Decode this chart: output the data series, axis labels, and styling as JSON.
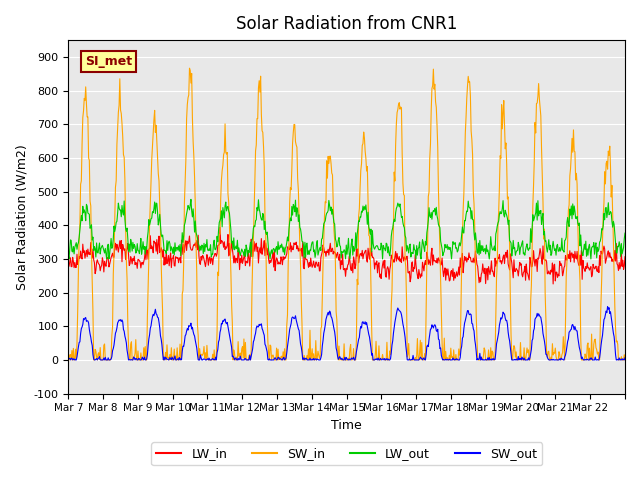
{
  "title": "Solar Radiation from CNR1",
  "xlabel": "Time",
  "ylabel": "Solar Radiation (W/m2)",
  "ylim": [
    -100,
    950
  ],
  "yticks": [
    -100,
    0,
    100,
    200,
    300,
    400,
    500,
    600,
    700,
    800,
    900
  ],
  "x_tick_positions": [
    0,
    1,
    2,
    3,
    4,
    5,
    6,
    7,
    8,
    9,
    10,
    11,
    12,
    13,
    14,
    15,
    16
  ],
  "x_labels": [
    "Mar 7",
    "Mar 8",
    "Mar 9",
    "Mar 10",
    "Mar 11",
    "Mar 12",
    "Mar 13",
    "Mar 14",
    "Mar 15",
    "Mar 16",
    "Mar 17",
    "Mar 18",
    "Mar 19",
    "Mar 20",
    "Mar 21",
    "Mar 22",
    ""
  ],
  "annotation": "SI_met",
  "colors": {
    "LW_in": "#ff0000",
    "SW_in": "#ffa500",
    "LW_out": "#00cc00",
    "SW_out": "#0000ff",
    "background": "#e8e8e8",
    "annotation_bg": "#ffff99",
    "annotation_border": "#8b0000"
  },
  "n_days": 16,
  "n_points_per_day": 48
}
